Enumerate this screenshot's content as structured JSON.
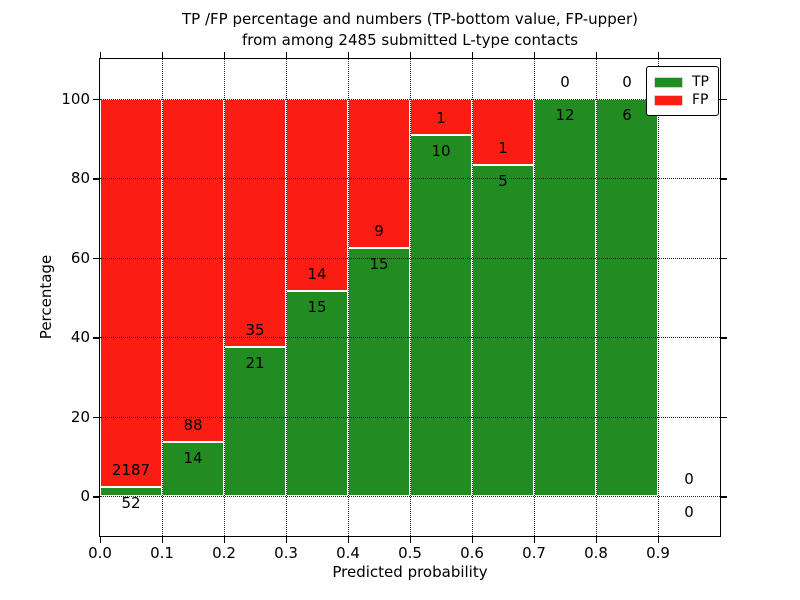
{
  "chart_data": {
    "type": "bar",
    "stacked": true,
    "title": "TP /FP percentage and numbers (TP-bottom value, FP-upper)\nfrom among 2485 submitted L-type contacts",
    "xlabel": "Predicted probability",
    "ylabel": "Percentage",
    "xlim": [
      0.0,
      1.0
    ],
    "ylim": [
      -10,
      110
    ],
    "xticks": [
      "0.0",
      "0.1",
      "0.2",
      "0.3",
      "0.4",
      "0.5",
      "0.6",
      "0.7",
      "0.8",
      "0.9"
    ],
    "yticks": [
      "0",
      "20",
      "40",
      "60",
      "80",
      "100"
    ],
    "grid": "dotted, both axes, drawn above bars",
    "bin_edges": [
      0.0,
      0.1,
      0.2,
      0.3,
      0.4,
      0.5,
      0.6,
      0.7,
      0.8,
      0.9,
      1.0
    ],
    "series": [
      {
        "name": "TP",
        "color": "#228b22",
        "values": [
          52,
          14,
          21,
          15,
          15,
          10,
          5,
          12,
          6,
          0
        ]
      },
      {
        "name": "FP",
        "color": "#fb1c13",
        "values": [
          2187,
          88,
          35,
          14,
          9,
          1,
          1,
          0,
          0,
          0
        ]
      }
    ],
    "tp_percent_heights": [
      2.3,
      13.7,
      37.5,
      51.7,
      62.5,
      90.9,
      83.3,
      100.0,
      100.0,
      0.0
    ],
    "total_submitted": 2485,
    "legend_position": "upper right",
    "bar_edge_color": "#ffffff",
    "label_note": "TP count drawn just below green top, FP count just above"
  }
}
